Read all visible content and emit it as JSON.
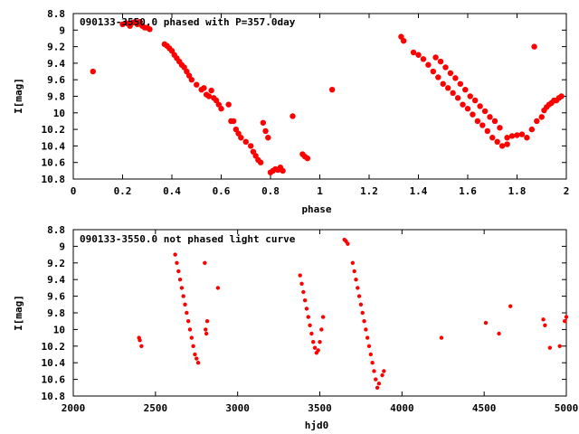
{
  "chart_data": [
    {
      "type": "scatter",
      "title": "090133-3550.0 phased with P=357.0day",
      "xlabel": "phase",
      "ylabel": "I[mag]",
      "xlim": [
        0,
        2
      ],
      "ylim": [
        10.8,
        8.8
      ],
      "y_inverted": true,
      "xticks": [
        "0",
        "0.2",
        "0.4",
        "0.6",
        "0.8",
        "1",
        "1.2",
        "1.4",
        "1.6",
        "1.8",
        "2"
      ],
      "yticks": [
        "8.8",
        "9",
        "9.2",
        "9.4",
        "9.6",
        "9.8",
        "10",
        "10.2",
        "10.4",
        "10.6",
        "10.8"
      ],
      "marker_color": "#ff0000",
      "series": [
        {
          "points": [
            [
              0.08,
              9.5
            ],
            [
              0.2,
              8.93
            ],
            [
              0.22,
              8.92
            ],
            [
              0.23,
              8.95
            ],
            [
              0.24,
              8.91
            ],
            [
              0.25,
              8.9
            ],
            [
              0.26,
              8.93
            ],
            [
              0.27,
              8.9
            ],
            [
              0.28,
              8.95
            ],
            [
              0.29,
              8.97
            ],
            [
              0.3,
              8.97
            ],
            [
              0.31,
              8.99
            ],
            [
              0.37,
              9.17
            ],
            [
              0.38,
              9.19
            ],
            [
              0.39,
              9.22
            ],
            [
              0.4,
              9.25
            ],
            [
              0.41,
              9.3
            ],
            [
              0.42,
              9.34
            ],
            [
              0.43,
              9.38
            ],
            [
              0.44,
              9.42
            ],
            [
              0.45,
              9.45
            ],
            [
              0.46,
              9.5
            ],
            [
              0.47,
              9.55
            ],
            [
              0.48,
              9.6
            ],
            [
              0.5,
              9.66
            ],
            [
              0.52,
              9.72
            ],
            [
              0.53,
              9.7
            ],
            [
              0.54,
              9.78
            ],
            [
              0.55,
              9.8
            ],
            [
              0.56,
              9.73
            ],
            [
              0.57,
              9.82
            ],
            [
              0.58,
              9.85
            ],
            [
              0.59,
              9.9
            ],
            [
              0.6,
              9.95
            ],
            [
              0.63,
              9.9
            ],
            [
              0.64,
              10.1
            ],
            [
              0.65,
              10.1
            ],
            [
              0.66,
              10.2
            ],
            [
              0.67,
              10.25
            ],
            [
              0.68,
              10.3
            ],
            [
              0.7,
              10.35
            ],
            [
              0.72,
              10.4
            ],
            [
              0.73,
              10.47
            ],
            [
              0.74,
              10.52
            ],
            [
              0.75,
              10.57
            ],
            [
              0.76,
              10.6
            ],
            [
              0.77,
              10.12
            ],
            [
              0.78,
              10.22
            ],
            [
              0.79,
              10.3
            ],
            [
              0.8,
              10.72
            ],
            [
              0.81,
              10.7
            ],
            [
              0.82,
              10.68
            ],
            [
              0.83,
              10.69
            ],
            [
              0.84,
              10.66
            ],
            [
              0.85,
              10.7
            ],
            [
              0.89,
              10.04
            ],
            [
              0.93,
              10.5
            ],
            [
              0.94,
              10.53
            ],
            [
              0.95,
              10.55
            ],
            [
              1.05,
              9.72
            ],
            [
              1.33,
              9.08
            ],
            [
              1.34,
              9.13
            ],
            [
              1.38,
              9.27
            ],
            [
              1.4,
              9.3
            ],
            [
              1.42,
              9.35
            ],
            [
              1.44,
              9.42
            ],
            [
              1.46,
              9.5
            ],
            [
              1.48,
              9.57
            ],
            [
              1.5,
              9.65
            ],
            [
              1.52,
              9.7
            ],
            [
              1.54,
              9.76
            ],
            [
              1.56,
              9.82
            ],
            [
              1.58,
              9.9
            ],
            [
              1.6,
              9.95
            ],
            [
              1.62,
              10.02
            ],
            [
              1.64,
              10.1
            ],
            [
              1.66,
              10.15
            ],
            [
              1.68,
              10.22
            ],
            [
              1.7,
              10.3
            ],
            [
              1.72,
              10.35
            ],
            [
              1.74,
              10.4
            ],
            [
              1.76,
              10.38
            ],
            [
              1.47,
              9.33
            ],
            [
              1.49,
              9.38
            ],
            [
              1.51,
              9.45
            ],
            [
              1.53,
              9.52
            ],
            [
              1.55,
              9.58
            ],
            [
              1.57,
              9.65
            ],
            [
              1.59,
              9.72
            ],
            [
              1.61,
              9.8
            ],
            [
              1.63,
              9.85
            ],
            [
              1.65,
              9.92
            ],
            [
              1.67,
              9.98
            ],
            [
              1.69,
              10.05
            ],
            [
              1.71,
              10.1
            ],
            [
              1.73,
              10.18
            ],
            [
              1.76,
              10.3
            ],
            [
              1.78,
              10.28
            ],
            [
              1.8,
              10.27
            ],
            [
              1.82,
              10.26
            ],
            [
              1.84,
              10.3
            ],
            [
              1.86,
              10.2
            ],
            [
              1.87,
              9.2
            ],
            [
              1.88,
              10.1
            ],
            [
              1.9,
              10.05
            ],
            [
              1.91,
              9.97
            ],
            [
              1.92,
              9.93
            ],
            [
              1.93,
              9.9
            ],
            [
              1.94,
              9.88
            ],
            [
              1.95,
              9.85
            ],
            [
              1.96,
              9.85
            ],
            [
              1.97,
              9.82
            ],
            [
              1.98,
              9.8
            ]
          ]
        }
      ]
    },
    {
      "type": "scatter",
      "title": "090133-3550.0 not phased light curve",
      "xlabel": "hjd0",
      "ylabel": "I[mag]",
      "xlim": [
        2000,
        5000
      ],
      "ylim": [
        10.8,
        8.8
      ],
      "y_inverted": true,
      "xticks": [
        "2000",
        "2500",
        "3000",
        "3500",
        "4000",
        "4500",
        "5000"
      ],
      "yticks": [
        "8.8",
        "9",
        "9.2",
        "9.4",
        "9.6",
        "9.8",
        "10",
        "10.2",
        "10.4",
        "10.6",
        "10.8"
      ],
      "marker_color": "#ff0000",
      "series": [
        {
          "points": [
            [
              2400,
              10.1
            ],
            [
              2405,
              10.13
            ],
            [
              2415,
              10.2
            ],
            [
              2620,
              9.1
            ],
            [
              2630,
              9.2
            ],
            [
              2640,
              9.3
            ],
            [
              2650,
              9.4
            ],
            [
              2660,
              9.5
            ],
            [
              2670,
              9.6
            ],
            [
              2680,
              9.7
            ],
            [
              2690,
              9.8
            ],
            [
              2700,
              9.9
            ],
            [
              2710,
              10.0
            ],
            [
              2720,
              10.1
            ],
            [
              2730,
              10.2
            ],
            [
              2740,
              10.3
            ],
            [
              2750,
              10.35
            ],
            [
              2760,
              10.4
            ],
            [
              2800,
              9.2
            ],
            [
              2805,
              10.0
            ],
            [
              2810,
              10.05
            ],
            [
              2815,
              9.9
            ],
            [
              2880,
              9.5
            ],
            [
              3380,
              9.35
            ],
            [
              3390,
              9.45
            ],
            [
              3400,
              9.55
            ],
            [
              3410,
              9.65
            ],
            [
              3420,
              9.75
            ],
            [
              3430,
              9.85
            ],
            [
              3440,
              9.95
            ],
            [
              3450,
              10.05
            ],
            [
              3460,
              10.15
            ],
            [
              3470,
              10.22
            ],
            [
              3480,
              10.28
            ],
            [
              3490,
              10.25
            ],
            [
              3500,
              10.15
            ],
            [
              3510,
              10.0
            ],
            [
              3520,
              9.85
            ],
            [
              3650,
              8.92
            ],
            [
              3660,
              8.94
            ],
            [
              3670,
              8.97
            ],
            [
              3700,
              9.2
            ],
            [
              3710,
              9.3
            ],
            [
              3720,
              9.4
            ],
            [
              3730,
              9.5
            ],
            [
              3740,
              9.6
            ],
            [
              3750,
              9.7
            ],
            [
              3760,
              9.8
            ],
            [
              3770,
              9.9
            ],
            [
              3780,
              10.0
            ],
            [
              3790,
              10.1
            ],
            [
              3800,
              10.2
            ],
            [
              3810,
              10.3
            ],
            [
              3820,
              10.4
            ],
            [
              3830,
              10.5
            ],
            [
              3840,
              10.6
            ],
            [
              3850,
              10.7
            ],
            [
              3860,
              10.65
            ],
            [
              3880,
              10.55
            ],
            [
              3890,
              10.5
            ],
            [
              4240,
              10.1
            ],
            [
              4510,
              9.92
            ],
            [
              4590,
              10.05
            ],
            [
              4660,
              9.72
            ],
            [
              4860,
              9.88
            ],
            [
              4870,
              9.95
            ],
            [
              4900,
              10.22
            ],
            [
              4960,
              10.2
            ],
            [
              4990,
              9.9
            ],
            [
              5000,
              9.85
            ]
          ]
        }
      ]
    }
  ]
}
